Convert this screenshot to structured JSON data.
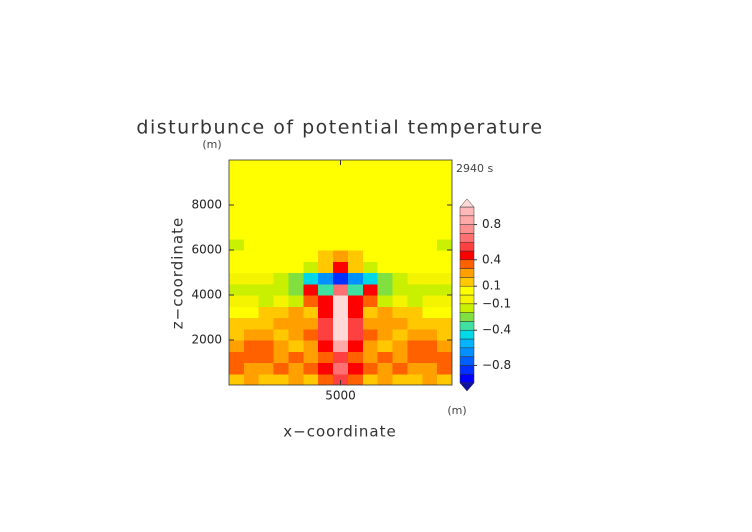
{
  "chart_data": {
    "type": "contour",
    "title": "disturbunce of potential temperature",
    "x_label": "x−coordinate",
    "y_label": "z−coordinate",
    "x_unit": "(m)",
    "y_unit": "(m)",
    "annotation": "2940 s",
    "xlim": [
      0,
      10000
    ],
    "ylim": [
      0,
      10000
    ],
    "xticks": [
      5000
    ],
    "yticks": [
      2000,
      4000,
      6000,
      8000
    ],
    "z": [
      [
        0.1,
        0.2,
        0.1,
        0.1,
        0.2,
        0.1,
        0.3,
        0.5,
        0.3,
        0.1,
        0.2,
        0.1,
        0.1,
        0.2,
        0.1
      ],
      [
        0.3,
        0.2,
        0.2,
        0.3,
        0.2,
        0.3,
        0.4,
        0.6,
        0.4,
        0.3,
        0.2,
        0.3,
        0.2,
        0.2,
        0.3
      ],
      [
        0.35,
        0.35,
        0.3,
        0.2,
        0.3,
        0.2,
        0.35,
        0.5,
        0.35,
        0.2,
        0.3,
        0.2,
        0.3,
        0.35,
        0.35
      ],
      [
        0.25,
        0.35,
        0.3,
        0.2,
        0.15,
        0.2,
        0.4,
        0.8,
        0.4,
        0.2,
        0.15,
        0.2,
        0.3,
        0.35,
        0.25
      ],
      [
        0.15,
        0.2,
        0.2,
        0.15,
        0.2,
        0.3,
        0.5,
        1.2,
        0.5,
        0.3,
        0.2,
        0.15,
        0.2,
        0.2,
        0.15
      ],
      [
        0.1,
        0.1,
        0.15,
        0.2,
        0.25,
        0.2,
        0.5,
        1.2,
        0.5,
        0.2,
        0.25,
        0.2,
        0.15,
        0.1,
        0.1
      ],
      [
        0.05,
        0.05,
        0.1,
        0.15,
        0.2,
        0.15,
        0.4,
        1.1,
        0.4,
        0.15,
        0.2,
        0.15,
        0.1,
        0.05,
        0.05
      ],
      [
        -0.05,
        -0.1,
        -0.15,
        -0.1,
        -0.2,
        0.3,
        0.4,
        1.0,
        0.4,
        0.3,
        -0.2,
        -0.1,
        -0.15,
        -0.1,
        -0.05
      ],
      [
        -0.15,
        -0.15,
        -0.2,
        -0.2,
        -0.3,
        0.45,
        -0.4,
        0.6,
        -0.4,
        0.45,
        -0.3,
        -0.2,
        -0.2,
        -0.15,
        -0.15
      ],
      [
        -0.05,
        -0.1,
        -0.1,
        -0.15,
        -0.25,
        -0.45,
        -0.7,
        -0.9,
        -0.7,
        -0.45,
        -0.25,
        -0.15,
        -0.1,
        -0.1,
        -0.05
      ],
      [
        0.05,
        0.05,
        0.05,
        0.05,
        0.05,
        -0.15,
        0.1,
        0.45,
        0.1,
        -0.15,
        0.05,
        0.05,
        0.05,
        0.05,
        0.05
      ],
      [
        0.05,
        0.05,
        0.05,
        0.05,
        0.05,
        0.05,
        0.15,
        0.2,
        0.15,
        0.05,
        0.05,
        0.05,
        0.05,
        0.05,
        0.05
      ],
      [
        -0.15,
        0.05,
        0.05,
        0.05,
        0.05,
        0.05,
        0.05,
        0.05,
        0.05,
        0.05,
        0.05,
        0.05,
        0.05,
        0.05,
        -0.15
      ],
      [
        0.05,
        0.05,
        0.05,
        0.05,
        0.05,
        0.05,
        0.05,
        0.05,
        0.05,
        0.05,
        0.05,
        0.05,
        0.05,
        0.05,
        0.05
      ],
      [
        0.05,
        0.05,
        0.05,
        0.05,
        0.05,
        0.05,
        0.05,
        0.05,
        0.05,
        0.05,
        0.05,
        0.05,
        0.05,
        0.05,
        0.05
      ],
      [
        0.05,
        0.05,
        0.05,
        0.05,
        0.05,
        0.05,
        0.05,
        0.05,
        0.05,
        0.05,
        0.05,
        0.05,
        0.05,
        0.05,
        0.05
      ],
      [
        0.05,
        0.05,
        0.05,
        0.05,
        0.05,
        0.05,
        0.05,
        0.05,
        0.05,
        0.05,
        0.05,
        0.05,
        0.05,
        0.05,
        0.05
      ],
      [
        0.05,
        0.05,
        0.05,
        0.05,
        0.05,
        0.05,
        0.05,
        0.05,
        0.05,
        0.05,
        0.05,
        0.05,
        0.05,
        0.05,
        0.05
      ],
      [
        0.05,
        0.05,
        0.05,
        0.05,
        0.05,
        0.05,
        0.05,
        0.05,
        0.05,
        0.05,
        0.05,
        0.05,
        0.05,
        0.05,
        0.05
      ],
      [
        0.05,
        0.05,
        0.05,
        0.05,
        0.05,
        0.05,
        0.05,
        0.05,
        0.05,
        0.05,
        0.05,
        0.05,
        0.05,
        0.05,
        0.05
      ]
    ],
    "colorbar": {
      "levels": [
        -1.0,
        -0.9,
        -0.8,
        -0.7,
        -0.6,
        -0.5,
        -0.4,
        -0.3,
        -0.2,
        -0.1,
        0,
        0.1,
        0.2,
        0.3,
        0.4,
        0.5,
        0.6,
        0.7,
        0.8,
        0.9,
        1.0
      ],
      "colors": [
        "#1010a0",
        "#0000ff",
        "#0030ff",
        "#0060ff",
        "#0090ff",
        "#00b4ff",
        "#00d8e8",
        "#40e0a0",
        "#80e040",
        "#c8f000",
        "#f4f400",
        "#ffff00",
        "#ffc800",
        "#ffa000",
        "#ff6000",
        "#ff0000",
        "#ff4040",
        "#ff7070",
        "#ff9090",
        "#ffa8a8",
        "#ffb8b8",
        "#ffd8d8"
      ],
      "ticks": [
        {
          "value": -0.8,
          "label": "−0.8"
        },
        {
          "value": -0.4,
          "label": "−0.4"
        },
        {
          "value": -0.1,
          "label": "−0.1"
        },
        0.1,
        0.4,
        0.8
      ]
    }
  }
}
